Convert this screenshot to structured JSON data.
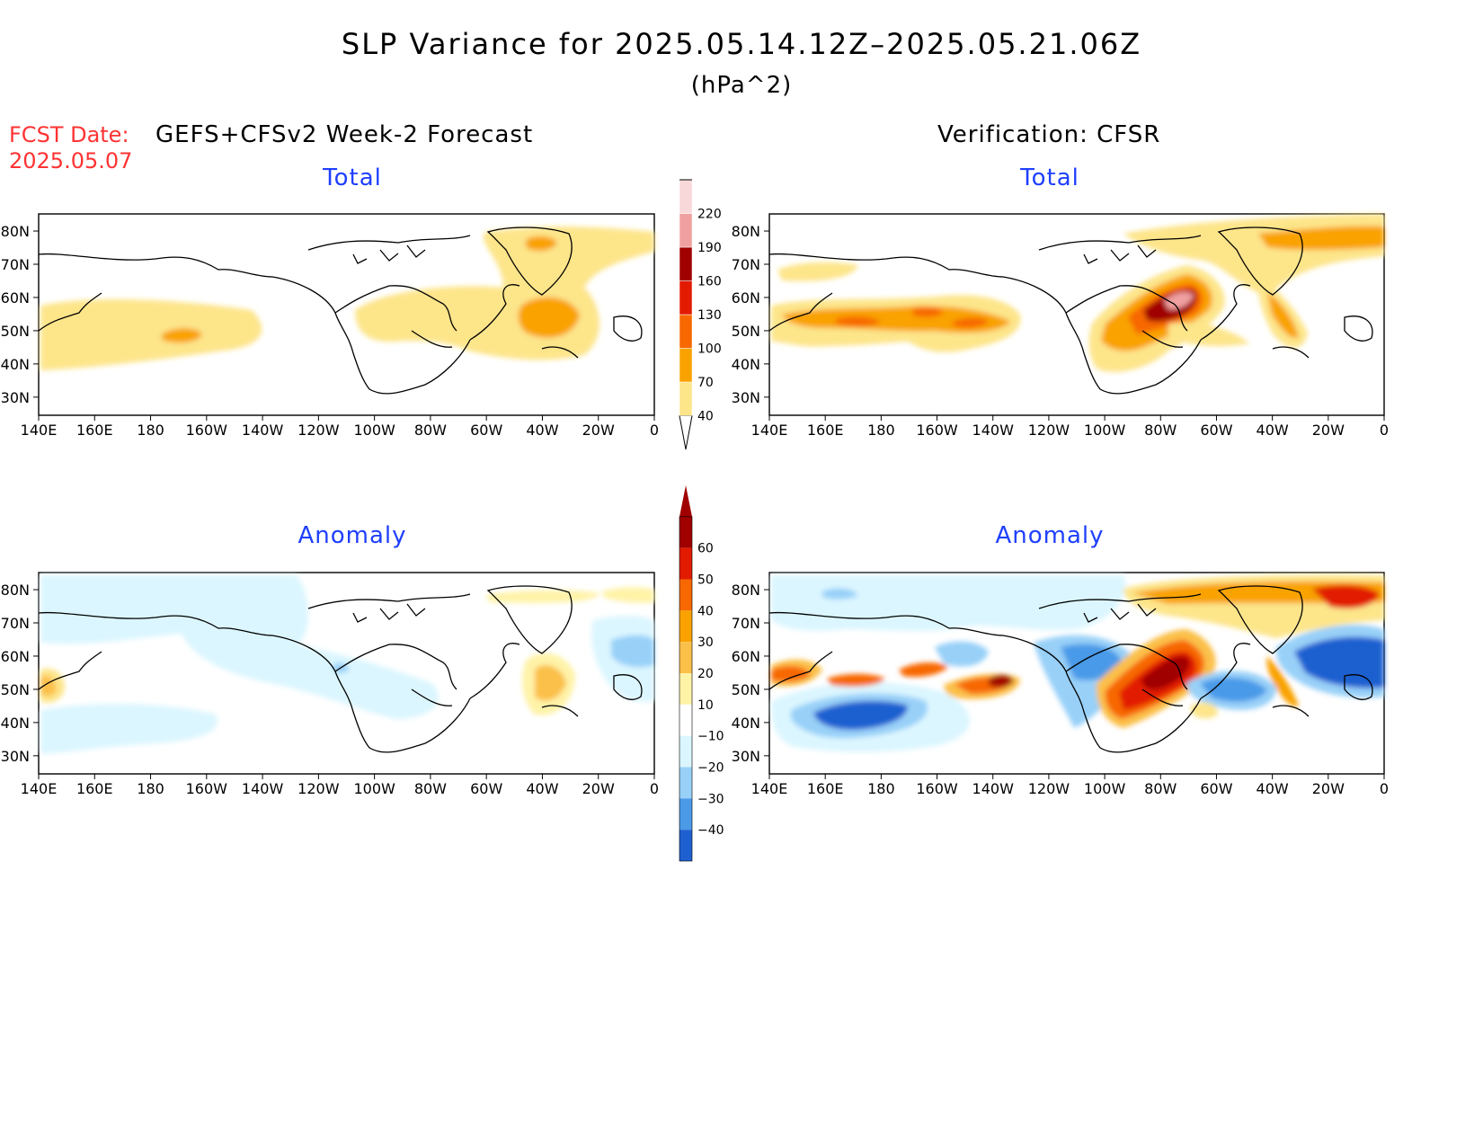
{
  "title": "SLP Variance for 2025.05.14.12Z–2025.05.21.06Z",
  "units": "(hPa^2)",
  "fcst_date_label": "FCST Date:",
  "fcst_date_value": "2025.05.07",
  "left_header": "GEFS+CFSv2 Week-2 Forecast",
  "right_header": "Verification: CFSR",
  "panels": {
    "forecast_total": {
      "title": "Total"
    },
    "verification_total": {
      "title": "Total"
    },
    "forecast_anomaly": {
      "title": "Anomaly"
    },
    "verification_anomaly": {
      "title": "Anomaly"
    }
  },
  "lat_labels": [
    "30N",
    "40N",
    "50N",
    "60N",
    "70N",
    "80N"
  ],
  "lon_labels": [
    "140E",
    "160E",
    "180",
    "160W",
    "140W",
    "120W",
    "100W",
    "80W",
    "60W",
    "40W",
    "20W",
    "0"
  ],
  "total_colorbar": {
    "levels": [
      "40",
      "70",
      "100",
      "130",
      "160",
      "190",
      "220"
    ],
    "colors": [
      "#fde58a",
      "#f9a200",
      "#f76800",
      "#e21b00",
      "#a00000",
      "#f0a0a0",
      "#f8d8d8"
    ]
  },
  "anomaly_colorbar": {
    "levels": [
      "60",
      "50",
      "40",
      "30",
      "20",
      "10",
      "−10",
      "−20",
      "−30",
      "−40"
    ],
    "colors_top_down": [
      "#a00000",
      "#e21b00",
      "#f76800",
      "#f9a200",
      "#fbc04a",
      "#fff3a8",
      "#ffffff",
      "#dbf6ff",
      "#98d0f8",
      "#4a9ae8",
      "#1f60d0"
    ]
  },
  "colors": {
    "title_red": "#ff3333",
    "panel_title_blue": "#1f3fff"
  }
}
